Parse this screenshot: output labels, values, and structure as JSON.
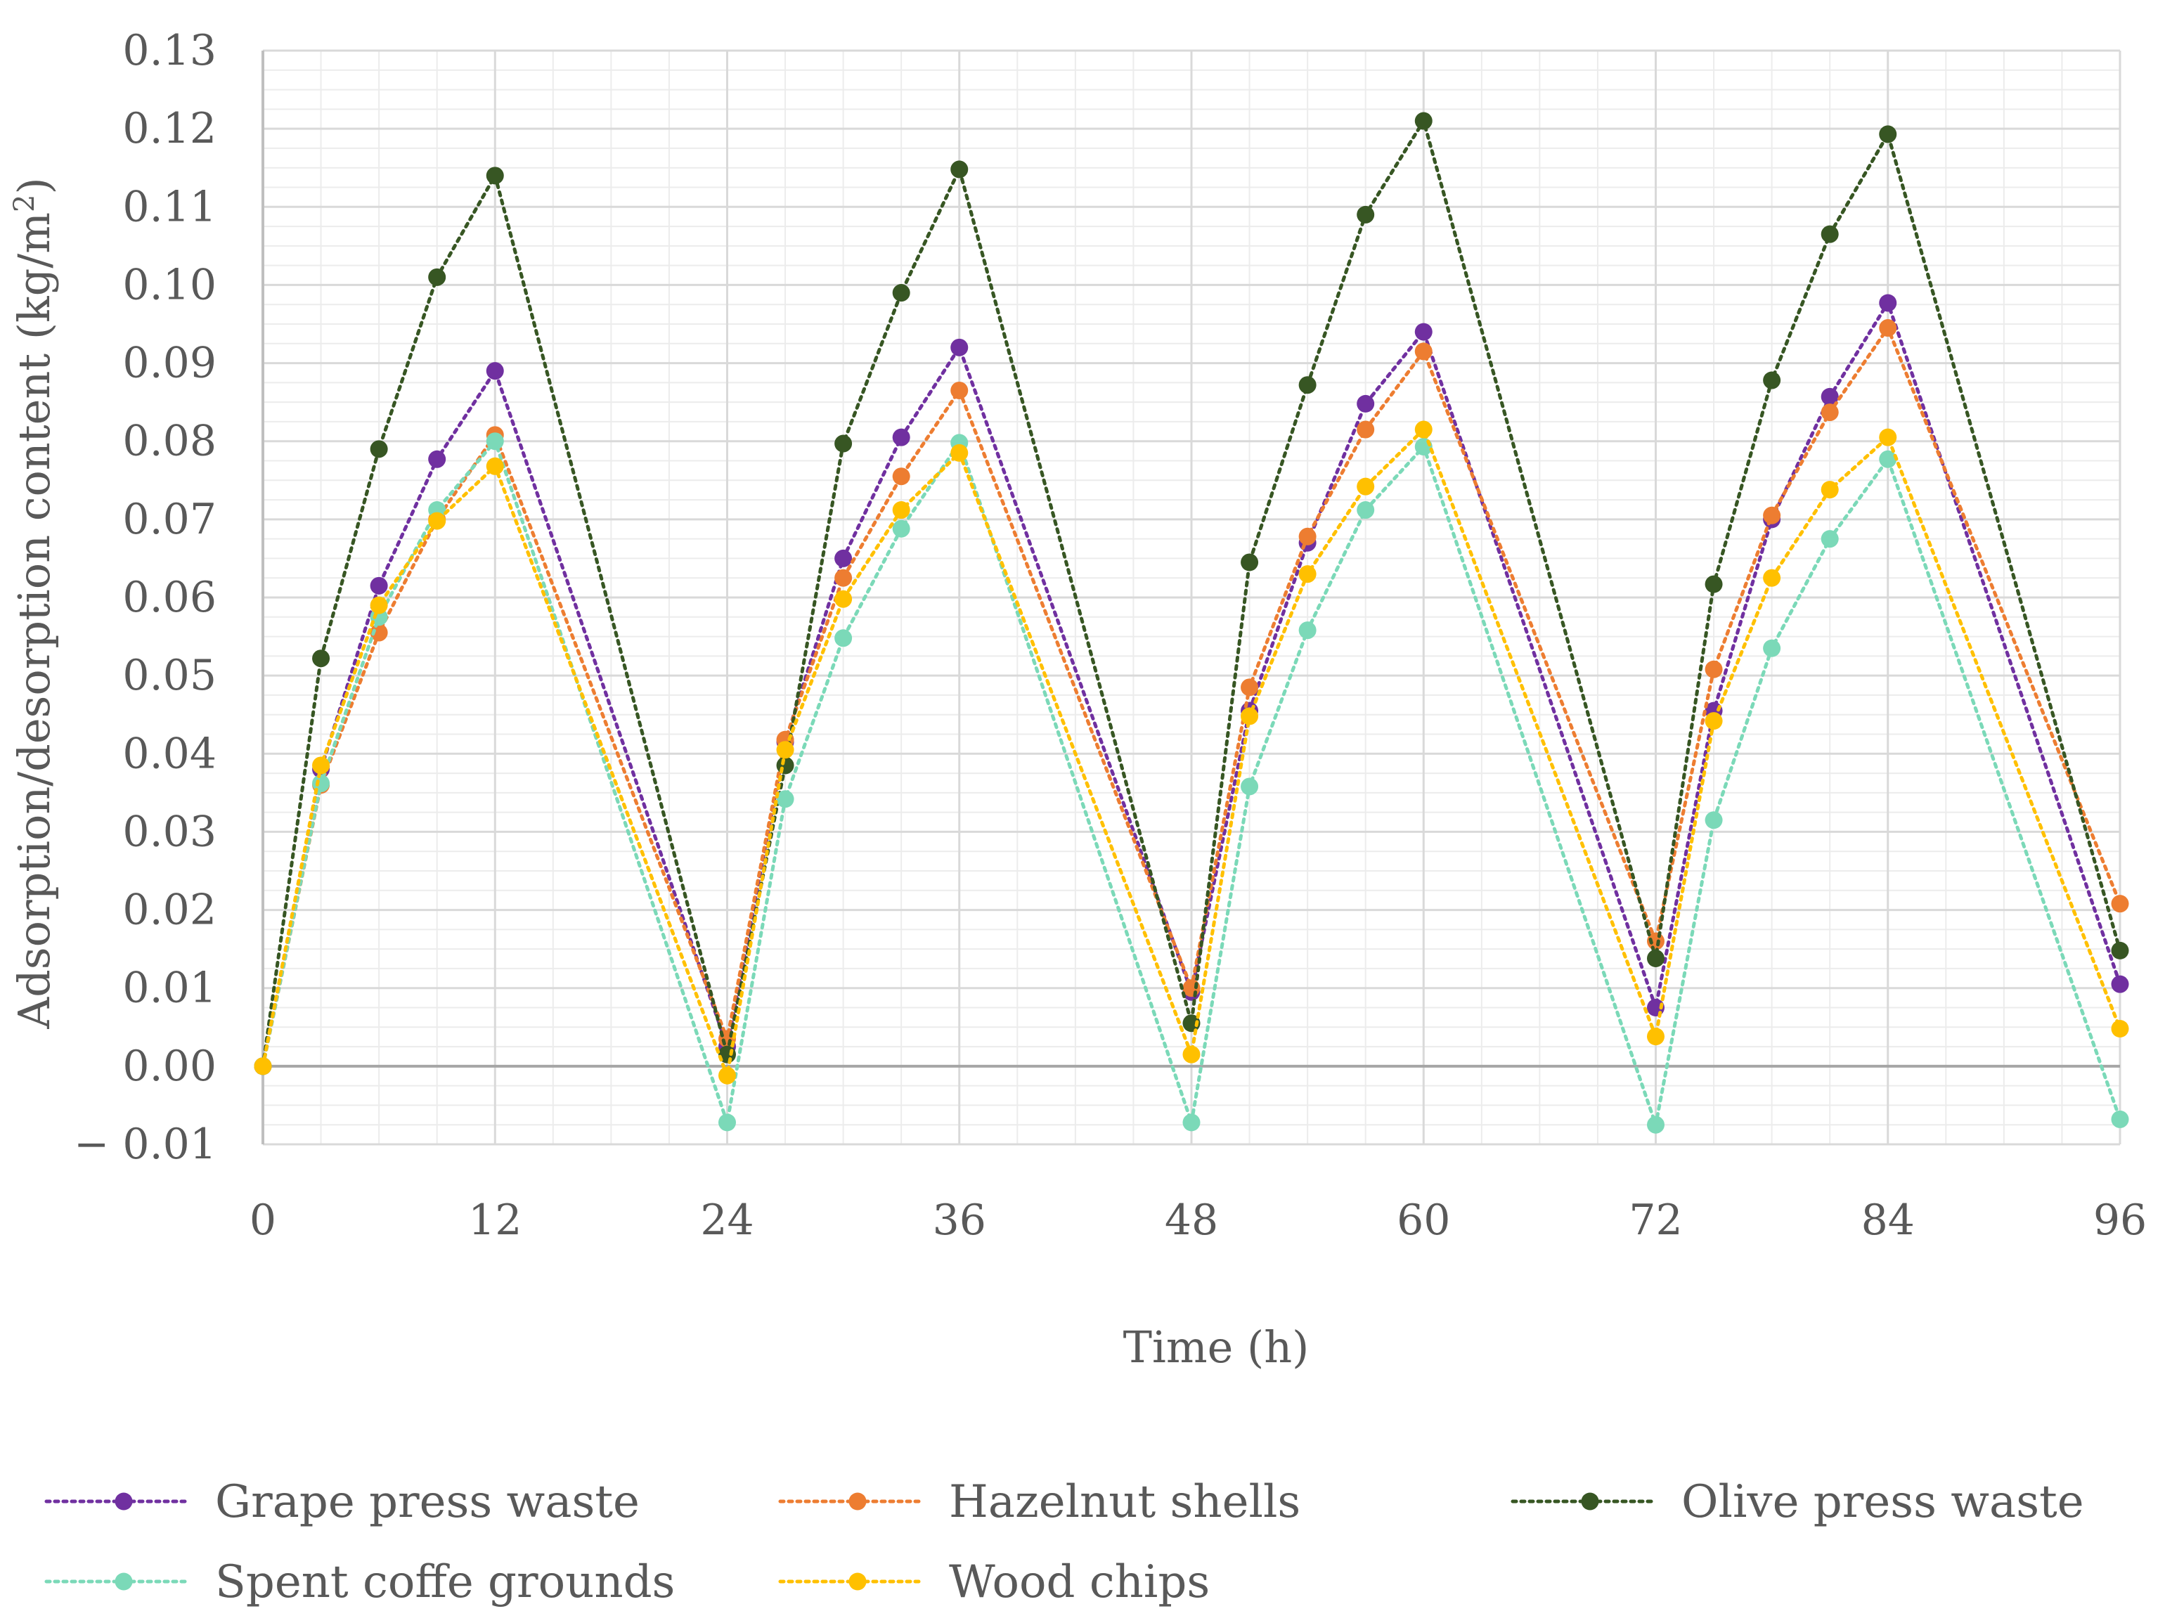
{
  "chart_data": {
    "type": "line",
    "title": "",
    "xlabel": "Time (h)",
    "ylabel": "Adsorption/desorption content (kg/m",
    "ylabel_sup": "2",
    "ylabel_end": ")",
    "xlim": [
      0,
      96
    ],
    "ylim": [
      -0.01,
      0.13
    ],
    "x_ticks": [
      0,
      12,
      24,
      36,
      48,
      60,
      72,
      84,
      96
    ],
    "x_tick_labels": [
      "0",
      "12",
      "24",
      "36",
      "48",
      "60",
      "72",
      "84",
      "96"
    ],
    "y_ticks": [
      -0.01,
      0.0,
      0.01,
      0.02,
      0.03,
      0.04,
      0.05,
      0.06,
      0.07,
      0.08,
      0.09,
      0.1,
      0.11,
      0.12,
      0.13
    ],
    "y_tick_labels": [
      "− 0.01",
      "0.00",
      "0.01",
      "0.02",
      "0.03",
      "0.04",
      "0.05",
      "0.06",
      "0.07",
      "0.08",
      "0.09",
      "0.10",
      "0.11",
      "0.12",
      "0.13"
    ],
    "grid": true,
    "legend_position": "bottom",
    "x": [
      0,
      3,
      6,
      9,
      12,
      24,
      27,
      30,
      33,
      36,
      48,
      51,
      54,
      57,
      60,
      72,
      75,
      78,
      81,
      84,
      96
    ],
    "series": [
      {
        "name": "Grape press waste",
        "color": "#7030A0",
        "values": [
          0.0,
          0.038,
          0.0615,
          0.0777,
          0.089,
          0.0025,
          0.0415,
          0.065,
          0.0805,
          0.092,
          0.0095,
          0.0455,
          0.067,
          0.0848,
          0.094,
          0.0075,
          0.0455,
          0.07,
          0.0857,
          0.0977,
          0.0105
        ]
      },
      {
        "name": "Hazelnut shells",
        "color": "#ED7D31",
        "values": [
          0.0,
          0.036,
          0.0555,
          0.07,
          0.0808,
          0.0035,
          0.0418,
          0.0625,
          0.0755,
          0.0865,
          0.01,
          0.0485,
          0.0678,
          0.0815,
          0.0915,
          0.016,
          0.0508,
          0.0705,
          0.0837,
          0.0945,
          0.0208
        ]
      },
      {
        "name": "Olive press waste",
        "color": "#375623",
        "values": [
          0.0,
          0.0522,
          0.079,
          0.101,
          0.114,
          0.0015,
          0.0385,
          0.0797,
          0.099,
          0.1148,
          0.0055,
          0.0645,
          0.0872,
          0.109,
          0.121,
          0.0138,
          0.0617,
          0.0878,
          0.1065,
          0.1193,
          0.0148
        ]
      },
      {
        "name": "Spent coffe grounds",
        "color": "#7BD9B8",
        "values": [
          0.0,
          0.0362,
          0.0575,
          0.0712,
          0.08,
          -0.0072,
          0.0342,
          0.0548,
          0.0688,
          0.0798,
          -0.0072,
          0.0358,
          0.0558,
          0.0712,
          0.0793,
          -0.0075,
          0.0315,
          0.0535,
          0.0675,
          0.0777,
          -0.0068
        ]
      },
      {
        "name": "Wood chips",
        "color": "#FFC000",
        "values": [
          0.0,
          0.0385,
          0.059,
          0.0698,
          0.0768,
          -0.0012,
          0.0405,
          0.0598,
          0.0712,
          0.0785,
          0.0015,
          0.0448,
          0.063,
          0.0742,
          0.0815,
          0.0038,
          0.0442,
          0.0625,
          0.0738,
          0.0805,
          0.0048
        ]
      }
    ]
  }
}
